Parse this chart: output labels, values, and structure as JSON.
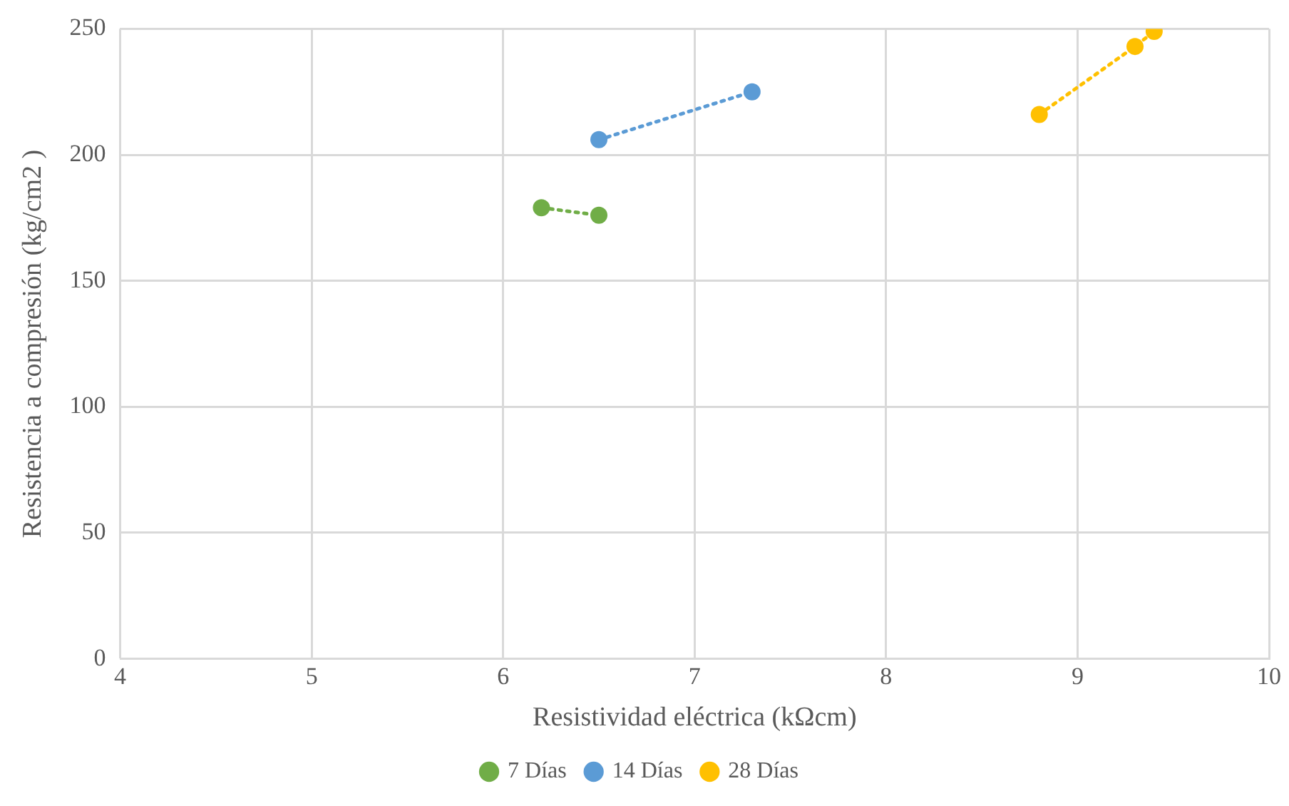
{
  "chart_data": {
    "type": "line",
    "xlabel": "Resistividad eléctrica (kΩcm)",
    "ylabel": "Resistencia a compresión (kg/cm2 )",
    "series": [
      {
        "name": "7 Días",
        "color": "#70ad47",
        "x": [
          6.2,
          6.5
        ],
        "values": [
          179,
          176
        ]
      },
      {
        "name": "14 Días",
        "color": "#5b9bd5",
        "x": [
          6.5,
          7.3
        ],
        "values": [
          206,
          225
        ]
      },
      {
        "name": "28 Días",
        "color": "#ffc000",
        "x": [
          8.8,
          9.3,
          9.4
        ],
        "values": [
          216,
          243,
          249
        ]
      }
    ],
    "xlim": [
      4,
      10
    ],
    "xticks": [
      4,
      5,
      6,
      7,
      8,
      9,
      10
    ],
    "ylim": [
      0,
      250
    ],
    "yticks": [
      0,
      50,
      100,
      150,
      200,
      250
    ],
    "grid": true,
    "legend": "bottom",
    "marker": "circle",
    "line_style": "dotted"
  }
}
